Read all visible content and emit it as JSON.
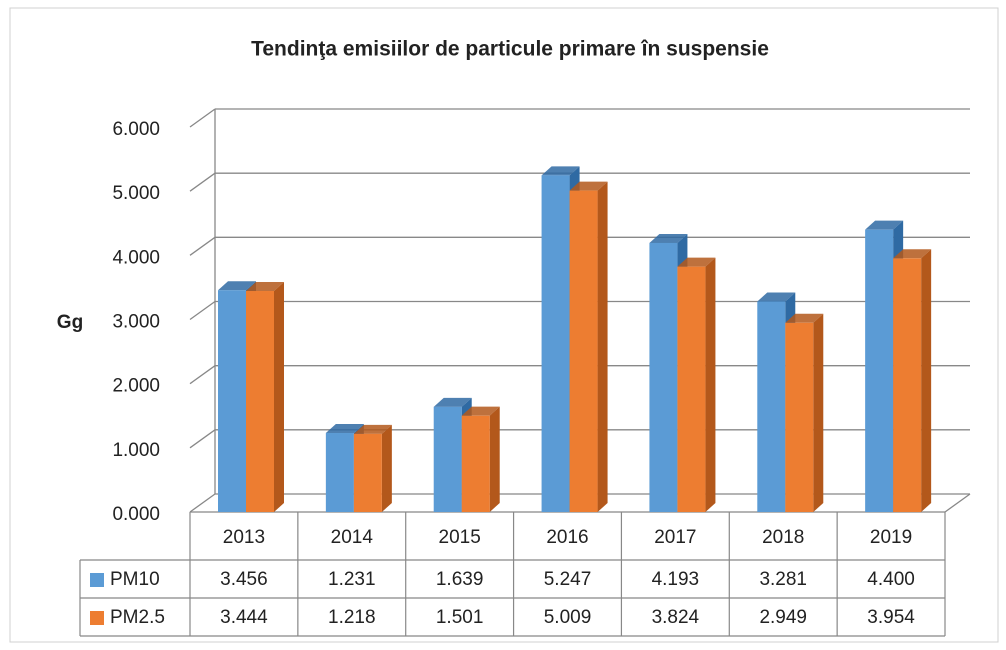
{
  "chart_data": {
    "type": "bar3d",
    "title": "Tendinţa emisiilor de particule primare în suspensie",
    "y_label": "Gg",
    "categories": [
      "2013",
      "2014",
      "2015",
      "2016",
      "2017",
      "2018",
      "2019"
    ],
    "series": [
      {
        "name": "PM10",
        "color": "#5b9bd5",
        "side_color": "#2f6aa3",
        "values": [
          3.456,
          1.231,
          1.639,
          5.247,
          4.193,
          3.281,
          4.4
        ],
        "value_labels": [
          "3.456",
          "1.231",
          "1.639",
          "5.247",
          "4.193",
          "3.281",
          "4.400"
        ]
      },
      {
        "name": "PM2.5",
        "color": "#ed7d31",
        "side_color": "#b3581b",
        "values": [
          3.444,
          1.218,
          1.501,
          5.009,
          3.824,
          2.949,
          3.954
        ],
        "value_labels": [
          "3.444",
          "1.218",
          "1.501",
          "5.009",
          "3.824",
          "2.949",
          "3.954"
        ]
      }
    ],
    "ylim": [
      0,
      6
    ],
    "yticks": [
      {
        "value": 0,
        "label": "0.000"
      },
      {
        "value": 1,
        "label": "1.000"
      },
      {
        "value": 2,
        "label": "2.000"
      },
      {
        "value": 3,
        "label": "3.000"
      },
      {
        "value": 4,
        "label": "4.000"
      },
      {
        "value": 5,
        "label": "5.000"
      },
      {
        "value": 6,
        "label": "6.000"
      }
    ],
    "grid": true
  }
}
